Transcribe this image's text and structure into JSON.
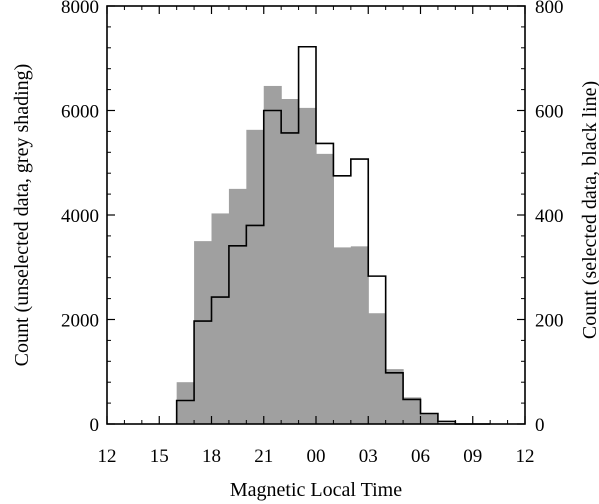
{
  "chart_data": {
    "type": "bar",
    "title": "",
    "xlabel": "Magnetic Local Time",
    "ylabel_left": "Count (unselected data, grey shading)",
    "ylabel_right": "Count (selected data, black line)",
    "x_bin_edges": [
      16,
      17,
      18,
      19,
      20,
      21,
      22,
      23,
      24,
      25,
      26,
      27,
      28,
      29,
      30,
      31,
      32,
      33,
      34
    ],
    "x_tick_positions": [
      12,
      15,
      18,
      21,
      24,
      27,
      30,
      33,
      36
    ],
    "x_tick_labels": [
      "12",
      "15",
      "18",
      "21",
      "00",
      "03",
      "06",
      "09",
      "12"
    ],
    "xlim": [
      12,
      36
    ],
    "left_axis": {
      "ylim": [
        0,
        8000
      ],
      "tick_values": [
        0,
        2000,
        4000,
        6000,
        8000
      ],
      "tick_labels": [
        "0",
        "2000",
        "4000",
        "6000",
        "8000"
      ]
    },
    "right_axis": {
      "ylim": [
        0,
        800
      ],
      "tick_values": [
        0,
        200,
        400,
        600,
        800
      ],
      "tick_labels": [
        "0",
        "200",
        "400",
        "600",
        "800"
      ]
    },
    "series": [
      {
        "style": "filled",
        "axis": "left",
        "color": "#a0a0a0",
        "values": [
          800,
          3500,
          4030,
          4500,
          5630,
          6470,
          6220,
          6050,
          5170,
          3380,
          3400,
          2120,
          1050,
          510,
          180,
          20,
          0,
          0
        ]
      },
      {
        "style": "step-outline",
        "axis": "right",
        "color": "#000000",
        "values": [
          45,
          197,
          243,
          341,
          380,
          600,
          557,
          722,
          537,
          475,
          507,
          283,
          98,
          47,
          20,
          5,
          0,
          0
        ]
      }
    ]
  }
}
